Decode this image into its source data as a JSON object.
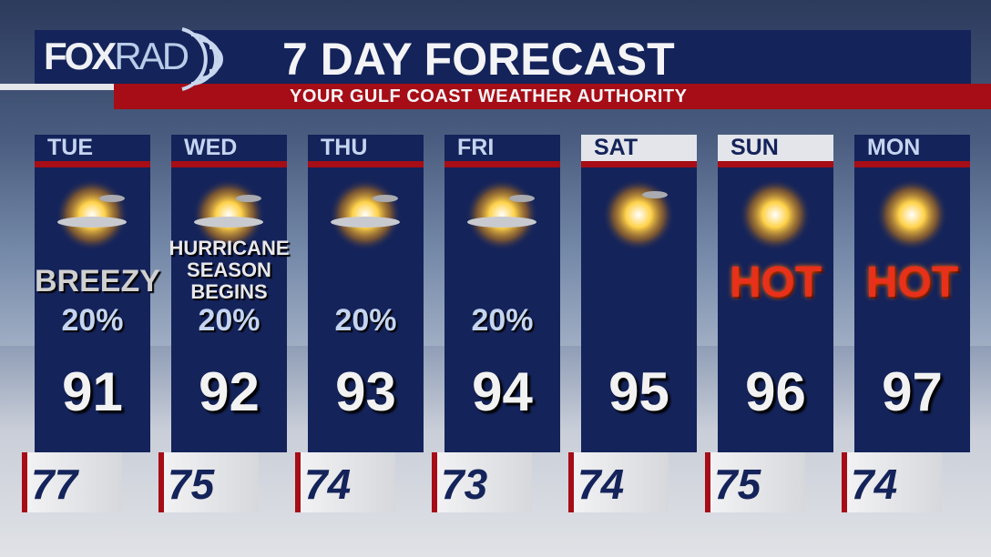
{
  "header": {
    "logo": "FOXRAD",
    "title": "7 DAY FORECAST",
    "subtitle": "YOUR GULF COAST WEATHER AUTHORITY"
  },
  "colors": {
    "navy": "#14235a",
    "red": "#a60d16"
  },
  "days": [
    {
      "day": "TUE",
      "icon": "partly-sunny-icon",
      "note": "BREEZY",
      "precip": "20%",
      "high": "91",
      "low": "77"
    },
    {
      "day": "WED",
      "icon": "partly-sunny-icon",
      "note": "HURRICANE SEASON BEGINS",
      "precip": "20%",
      "high": "92",
      "low": "75"
    },
    {
      "day": "THU",
      "icon": "partly-sunny-icon",
      "note": "",
      "precip": "20%",
      "high": "93",
      "low": "74"
    },
    {
      "day": "FRI",
      "icon": "partly-sunny-icon",
      "note": "",
      "precip": "20%",
      "high": "94",
      "low": "73"
    },
    {
      "day": "SAT",
      "icon": "mostly-sunny-icon",
      "note": "",
      "precip": "",
      "high": "95",
      "low": "74"
    },
    {
      "day": "SUN",
      "icon": "sunny-icon",
      "note": "HOT",
      "precip": "",
      "high": "96",
      "low": "75"
    },
    {
      "day": "MON",
      "icon": "sunny-icon",
      "note": "HOT",
      "precip": "",
      "high": "97",
      "low": "74"
    }
  ]
}
